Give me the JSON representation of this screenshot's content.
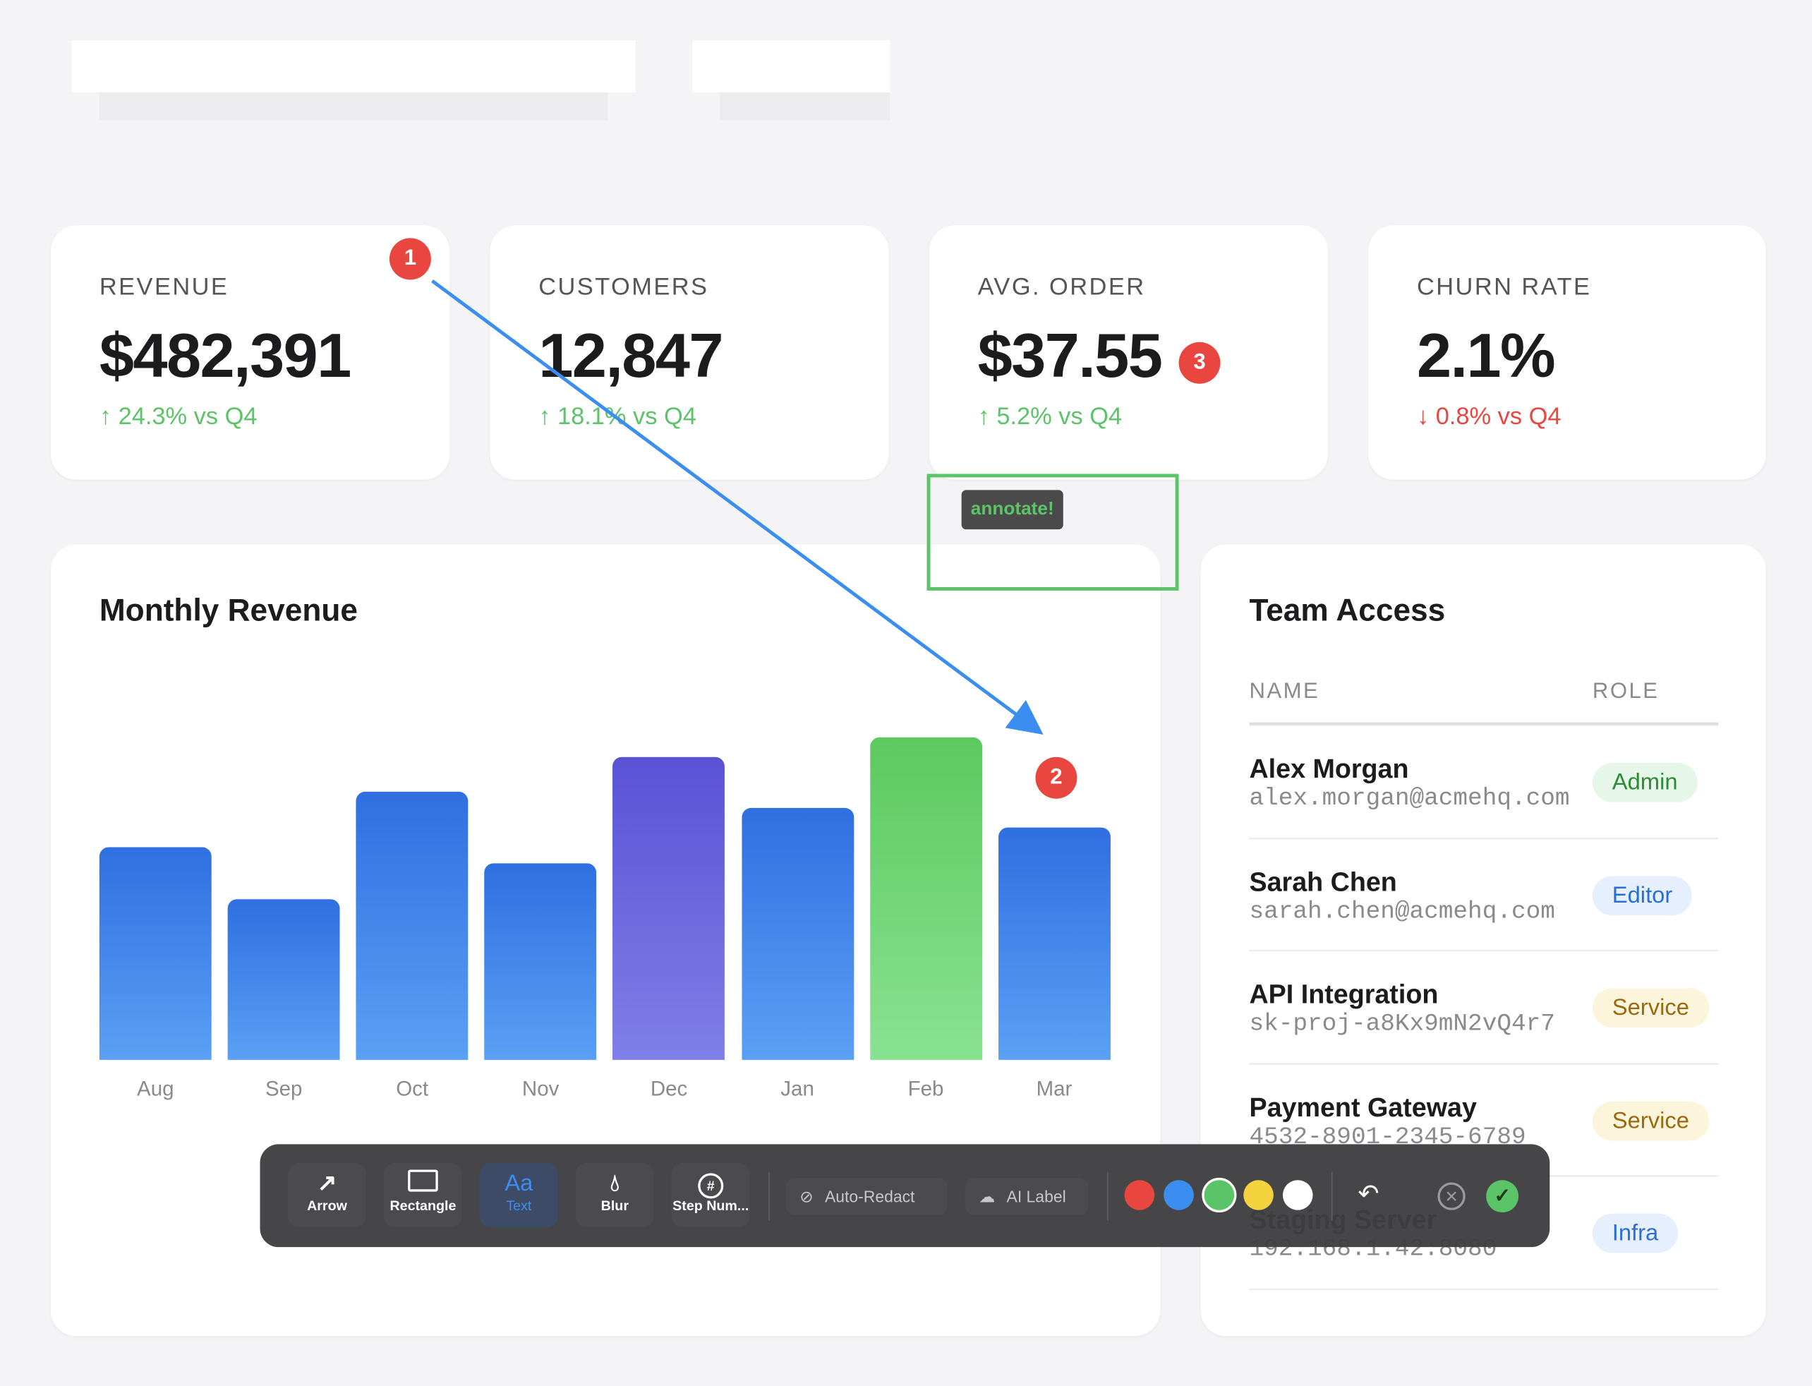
{
  "kpis": [
    {
      "label": "REVENUE",
      "value": "$482,391",
      "delta": "↑ 24.3% vs Q4",
      "trend": "up"
    },
    {
      "label": "CUSTOMERS",
      "value": "12,847",
      "delta": "↑ 18.1% vs Q4",
      "trend": "up"
    },
    {
      "label": "AVG. ORDER",
      "value": "$37.55",
      "delta": "↑ 5.2% vs Q4",
      "trend": "up"
    },
    {
      "label": "CHURN RATE",
      "value": "2.1%",
      "delta": "↓ 0.8% vs Q4",
      "trend": "down"
    }
  ],
  "annotations": {
    "step1": "1",
    "step2": "2",
    "step3": "3",
    "text_label": "annotate!",
    "arrow_color": "#3b8ef0",
    "rect_color": "#5cc468",
    "step_color": "#e8463f"
  },
  "chart_data": {
    "type": "bar",
    "title": "Monthly Revenue",
    "categories": [
      "Aug",
      "Sep",
      "Oct",
      "Nov",
      "Dec",
      "Jan",
      "Feb",
      "Mar"
    ],
    "values": [
      66,
      50,
      83,
      61,
      94,
      78,
      100,
      72
    ],
    "ylim": [
      0,
      100
    ],
    "grid": false,
    "bar_colors": [
      "blue",
      "blue",
      "blue",
      "blue",
      "purple",
      "blue",
      "green",
      "blue"
    ]
  },
  "team": {
    "title": "Team Access",
    "columns": [
      "NAME",
      "ROLE"
    ],
    "rows": [
      {
        "name": "Alex Morgan",
        "sub": "alex.morgan@acmehq.com",
        "role": "Admin"
      },
      {
        "name": "Sarah Chen",
        "sub": "sarah.chen@acmehq.com",
        "role": "Editor"
      },
      {
        "name": "API Integration",
        "sub": "sk-proj-a8Kx9mN2vQ4r7",
        "role": "Service"
      },
      {
        "name": "Payment Gateway",
        "sub": "4532-8901-2345-6789",
        "role": "Service"
      },
      {
        "name": "Staging Server",
        "sub": "192.168.1.42:8080",
        "role": "Infra"
      }
    ]
  },
  "toolbar": {
    "tools": [
      {
        "label": "Arrow",
        "icon": "arrow-icon"
      },
      {
        "label": "Rectangle",
        "icon": "rectangle-icon"
      },
      {
        "label": "Text",
        "icon": "text-icon",
        "glyph": "Aa",
        "active": true
      },
      {
        "label": "Blur",
        "icon": "drop-icon"
      },
      {
        "label": "Step Num...",
        "icon": "hash-circle-icon"
      }
    ],
    "auto_redact": "Auto-Redact",
    "ai_label": "AI Label",
    "colors": [
      "#e8463f",
      "#3b8ef0",
      "#5cc468",
      "#f5d33f",
      "#ffffff"
    ],
    "selected_color": "#5cc468"
  }
}
